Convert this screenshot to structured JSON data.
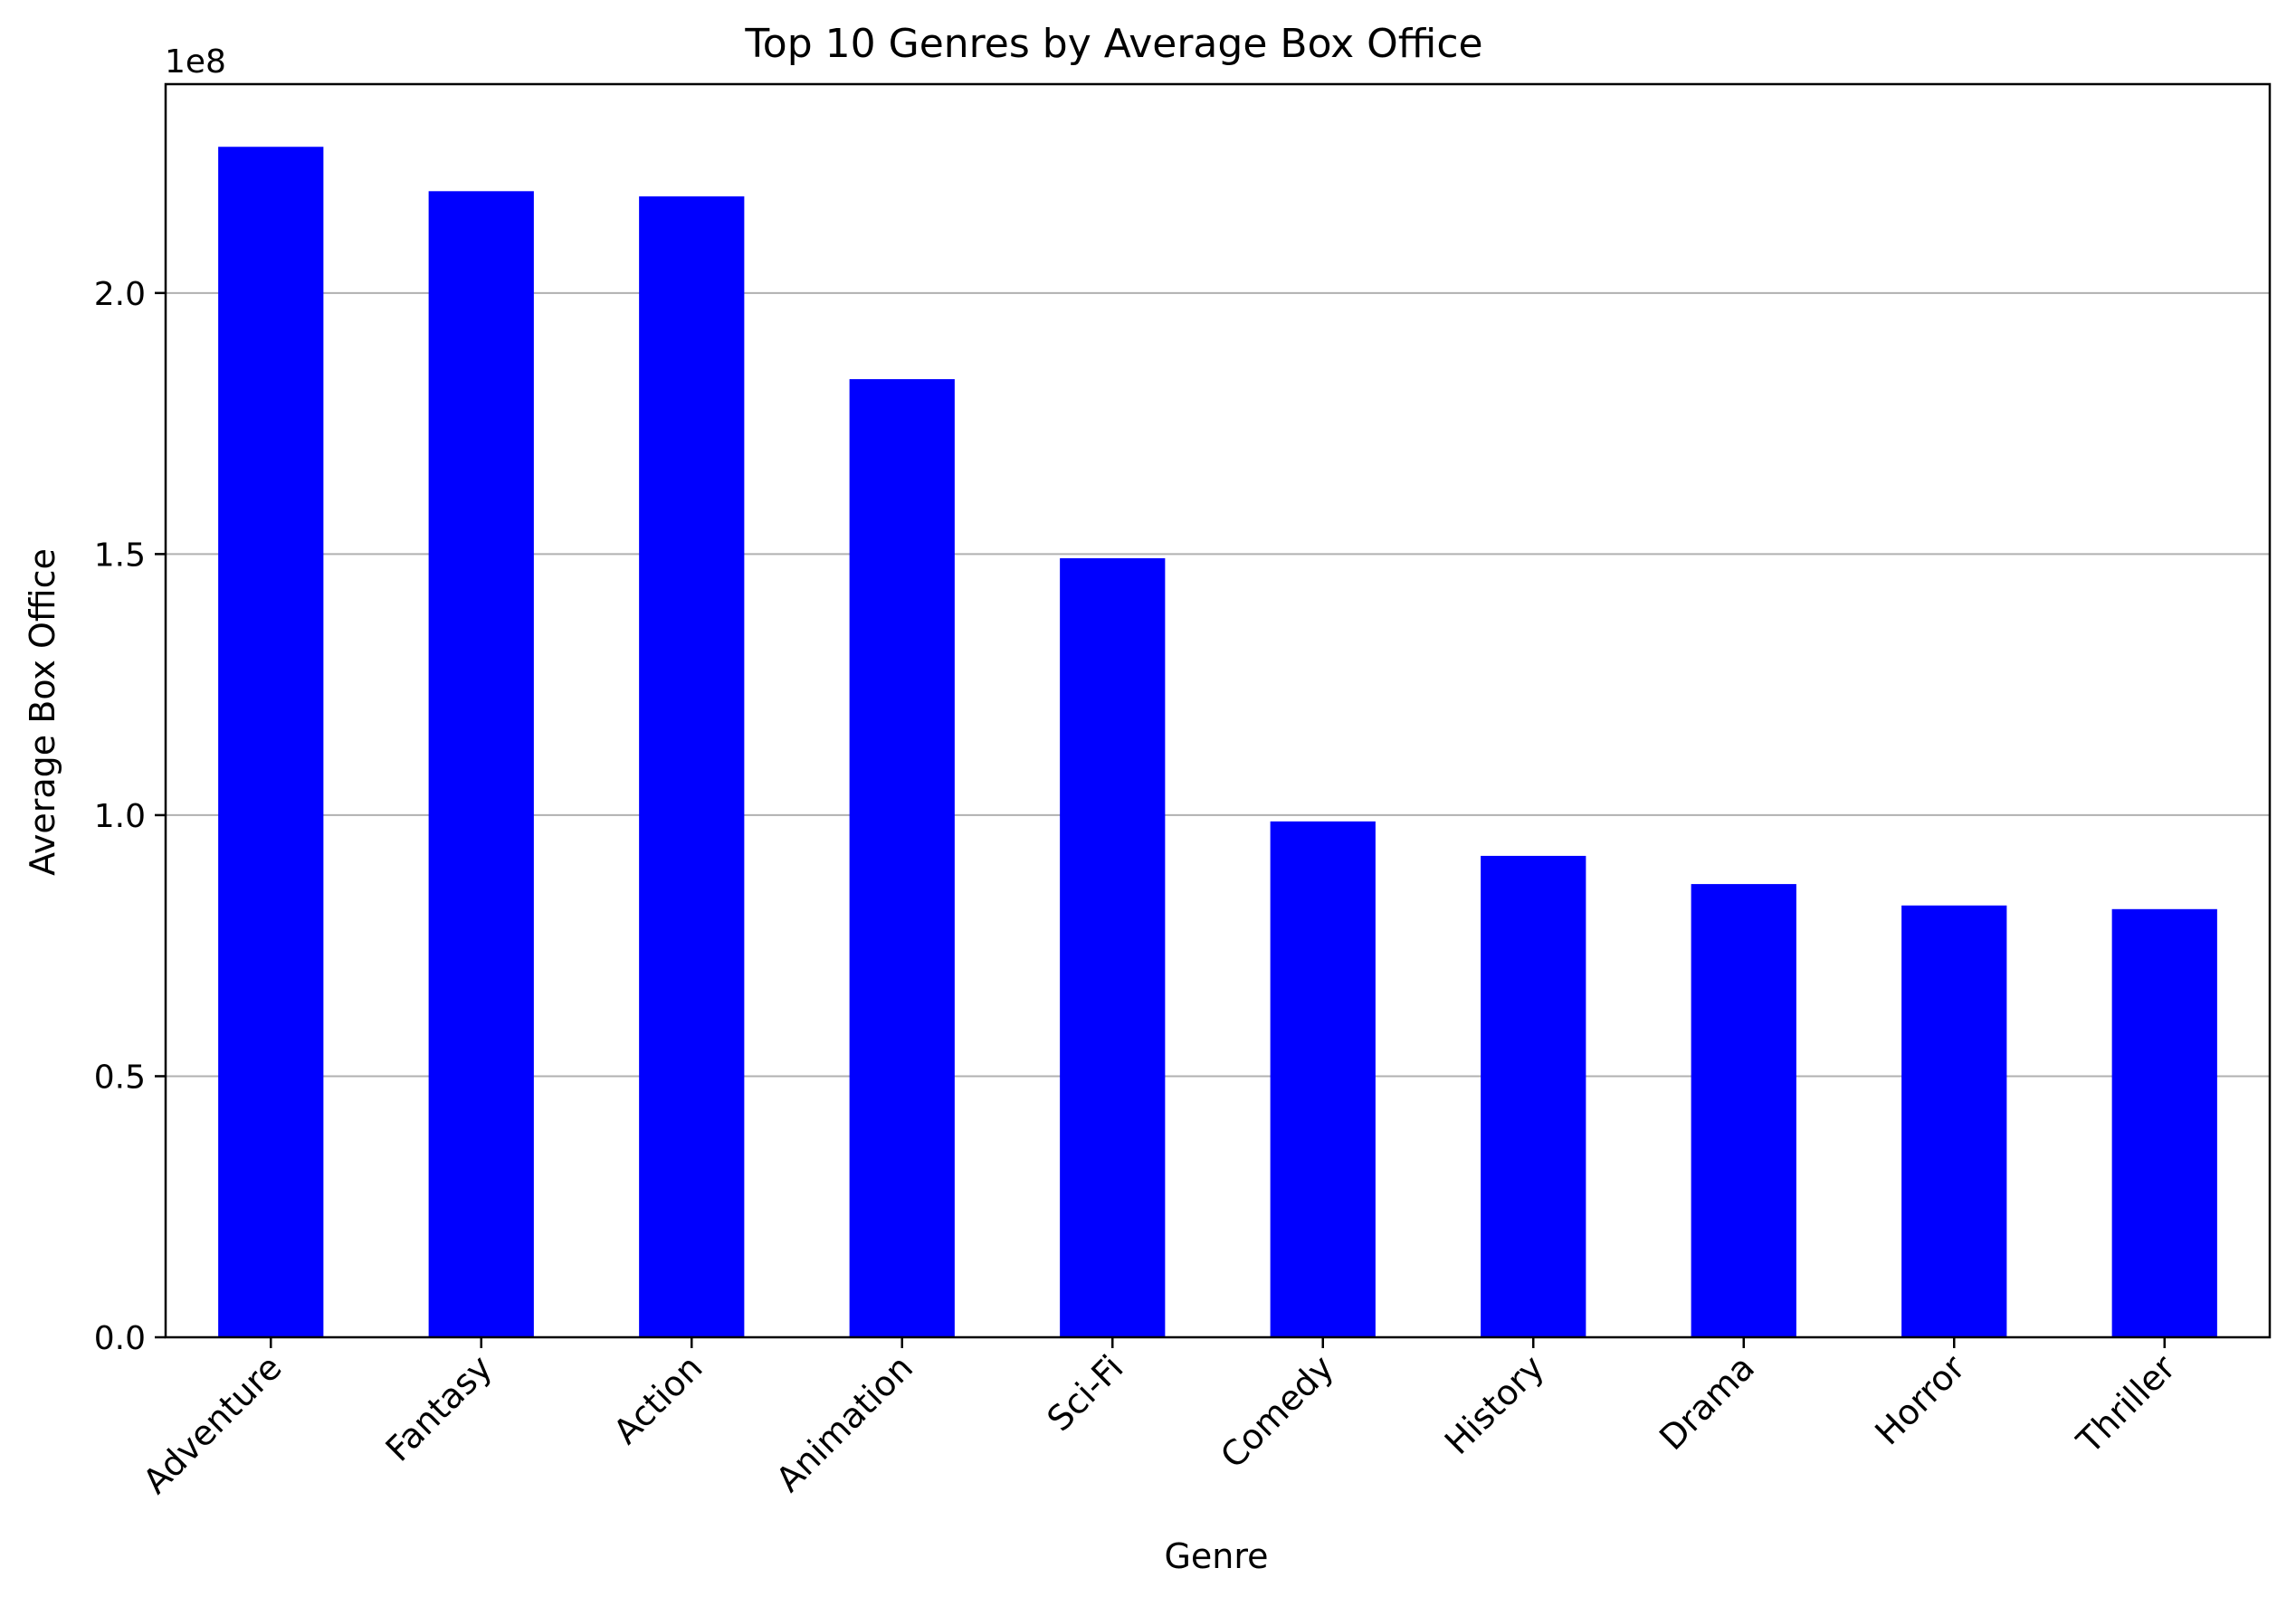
{
  "chart_data": {
    "type": "bar",
    "title": "Top 10 Genres by Average Box Office",
    "xlabel": "Genre",
    "ylabel": "Average Box Office",
    "offset_label": "1e8",
    "categories": [
      "Adventure",
      "Fantasy",
      "Action",
      "Animation",
      "Sci-Fi",
      "Comedy",
      "History",
      "Drama",
      "Horror",
      "Thriller"
    ],
    "series": [
      {
        "values": [
          2.28,
          2.195,
          2.185,
          1.835,
          1.492,
          0.988,
          0.922,
          0.868,
          0.827,
          0.82
        ]
      }
    ],
    "value_multiplier": 100000000,
    "ylim": [
      0,
      2.4
    ],
    "yticks": [
      0.0,
      0.5,
      1.0,
      1.5,
      2.0
    ],
    "ytick_labels": [
      "0.0",
      "0.5",
      "1.0",
      "1.5",
      "2.0"
    ],
    "grid": "horizontal",
    "legend": "none",
    "bar_color": "#0000ff"
  }
}
